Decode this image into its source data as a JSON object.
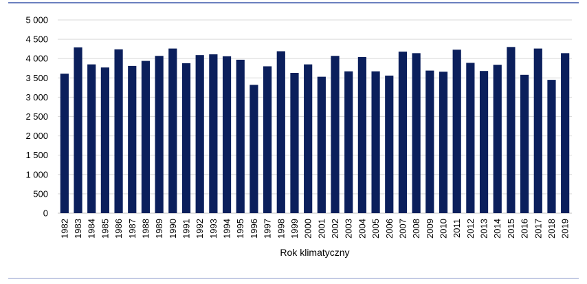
{
  "chart_data": {
    "type": "bar",
    "title": "",
    "xlabel": "Rok klimatyczny",
    "ylabel": "",
    "ylim": [
      0,
      5000
    ],
    "yticks": [
      "0",
      "500",
      "1 000",
      "1 500",
      "2 000",
      "2 500",
      "3 000",
      "3 500",
      "4 000",
      "4 500",
      "5 000"
    ],
    "grid": true,
    "bar_color": "#0b1f5c",
    "categories": [
      "1982",
      "1983",
      "1984",
      "1985",
      "1986",
      "1987",
      "1988",
      "1989",
      "1990",
      "1991",
      "1992",
      "1993",
      "1994",
      "1995",
      "1996",
      "1997",
      "1998",
      "1999",
      "2000",
      "2001",
      "2002",
      "2003",
      "2004",
      "2005",
      "2006",
      "2007",
      "2008",
      "2009",
      "2010",
      "2011",
      "2012",
      "2013",
      "2014",
      "2015",
      "2016",
      "2017",
      "2018",
      "2019"
    ],
    "values": [
      3610,
      4290,
      3850,
      3770,
      4240,
      3810,
      3940,
      4070,
      4260,
      3880,
      4090,
      4110,
      4060,
      3970,
      3320,
      3800,
      4190,
      3630,
      3850,
      3530,
      4070,
      3670,
      4040,
      3670,
      3560,
      4180,
      4140,
      3690,
      3660,
      4230,
      3890,
      3680,
      3840,
      4300,
      3580,
      4260,
      3450,
      4140
    ]
  }
}
